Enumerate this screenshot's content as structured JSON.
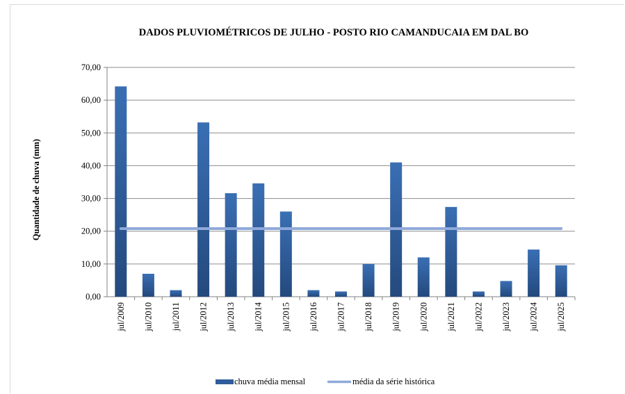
{
  "chart_data": {
    "type": "bar",
    "title": "DADOS PLUVIOMÉTRICOS DE JULHO - POSTO RIO CAMANDUCAIA EM DAL BO",
    "xlabel": "",
    "ylabel": "Quantidade de chuva (mm)",
    "ylim": [
      0,
      70
    ],
    "yticks": [
      "0,00",
      "10,00",
      "20,00",
      "30,00",
      "40,00",
      "50,00",
      "60,00",
      "70,00"
    ],
    "grid": true,
    "legend_position": "bottom",
    "categories": [
      "jul/2009",
      "jul/2010",
      "jul/2011",
      "jul/2012",
      "jul/2013",
      "jul/2014",
      "jul/2015",
      "jul/2016",
      "jul/2017",
      "jul/2018",
      "jul/2019",
      "jul/2020",
      "jul/2021",
      "jul/2022",
      "jul/2023",
      "jul/2024",
      "jul/2025"
    ],
    "series": [
      {
        "name": "chuva média mensal",
        "type": "bar",
        "color": "#2f5d9b",
        "values": [
          64.2,
          7.0,
          2.0,
          53.2,
          31.6,
          34.6,
          26.0,
          2.0,
          1.6,
          10.0,
          41.0,
          12.0,
          27.4,
          1.6,
          4.8,
          14.4,
          9.6
        ]
      },
      {
        "name": "média da série histórica",
        "type": "line",
        "color": "#8fa9d9",
        "values": [
          20.8,
          20.8,
          20.8,
          20.8,
          20.8,
          20.8,
          20.8,
          20.8,
          20.8,
          20.8,
          20.8,
          20.8,
          20.8,
          20.8,
          20.8,
          20.8,
          20.8
        ]
      }
    ]
  }
}
